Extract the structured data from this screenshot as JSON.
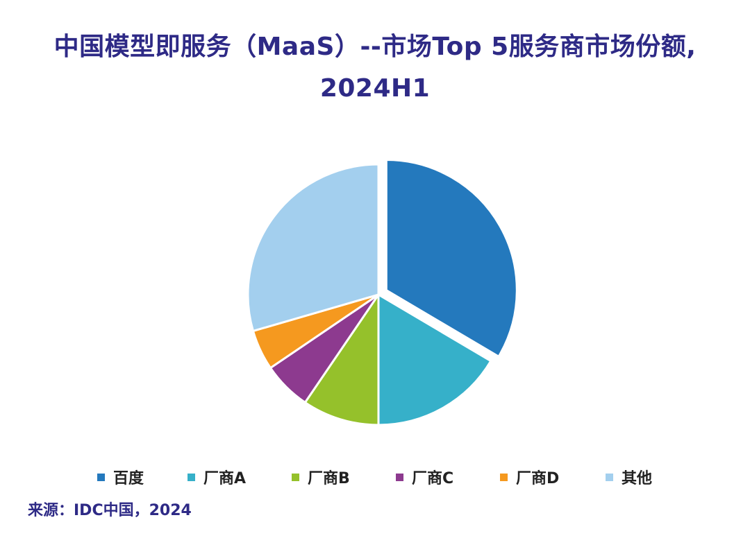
{
  "chart_data": {
    "type": "pie",
    "title_line1": "中国模型即服务（MaaS）--市场Top 5服务商市场份额,",
    "title_line2": "2024H1",
    "series": [
      {
        "name": "百度",
        "value": 33.5,
        "color": "#2479bd",
        "exploded": true
      },
      {
        "name": "厂商A",
        "value": 16.5,
        "color": "#36b0c9",
        "exploded": false
      },
      {
        "name": "厂商B",
        "value": 9.5,
        "color": "#95c12b",
        "exploded": false
      },
      {
        "name": "厂商C",
        "value": 6.0,
        "color": "#8d3a8f",
        "exploded": false
      },
      {
        "name": "厂商D",
        "value": 5.0,
        "color": "#f5991f",
        "exploded": false
      },
      {
        "name": "其他",
        "value": 29.5,
        "color": "#a3cfee",
        "exploded": false
      }
    ],
    "legend_position": "bottom",
    "source": "来源：IDC中国，2024"
  }
}
